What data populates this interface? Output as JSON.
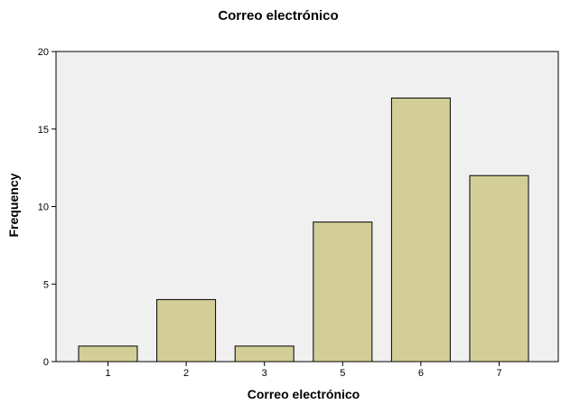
{
  "chart_data": {
    "type": "bar",
    "title": "Correo electrónico",
    "xlabel": "Correo electrónico",
    "ylabel": "Frequency",
    "categories": [
      "1",
      "2",
      "3",
      "5",
      "6",
      "7"
    ],
    "values": [
      1,
      4,
      1,
      9,
      17,
      12
    ],
    "ylim": [
      0,
      20
    ],
    "yticks": [
      "0",
      "5",
      "10",
      "15",
      "20"
    ],
    "grid": false,
    "colors": {
      "bar_fill": "#d3ce98",
      "plot_background": "#f0f0f0",
      "outline": "#000000"
    }
  }
}
